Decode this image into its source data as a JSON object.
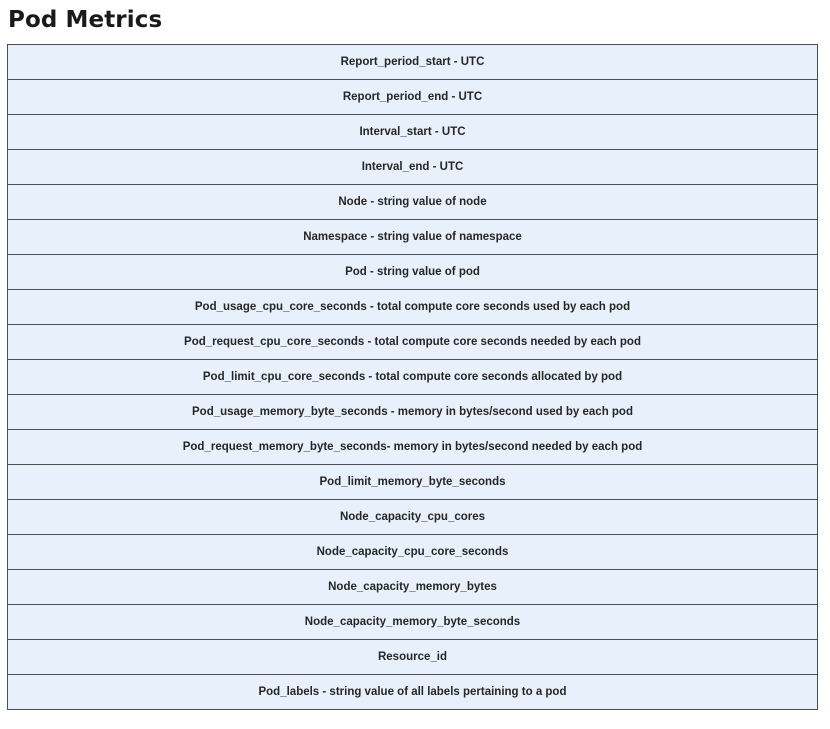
{
  "page": {
    "title": "Pod Metrics"
  },
  "metrics": {
    "rows": [
      "Report_period_start - UTC",
      "Report_period_end - UTC",
      "Interval_start - UTC",
      "Interval_end - UTC",
      "Node - string value of node",
      "Namespace - string value of namespace",
      "Pod - string value of pod",
      "Pod_usage_cpu_core_seconds - total compute core seconds used by each pod",
      "Pod_request_cpu_core_seconds - total compute core seconds needed by each pod",
      "Pod_limit_cpu_core_seconds - total compute core seconds allocated by pod",
      "Pod_usage_memory_byte_seconds - memory in bytes/second used by each pod",
      "Pod_request_memory_byte_seconds- memory in bytes/second needed by each pod",
      "Pod_limit_memory_byte_seconds",
      "Node_capacity_cpu_cores",
      "Node_capacity_cpu_core_seconds",
      "Node_capacity_memory_bytes",
      "Node_capacity_memory_byte_seconds",
      "Resource_id",
      "Pod_labels - string value of all labels pertaining to a pod"
    ]
  }
}
